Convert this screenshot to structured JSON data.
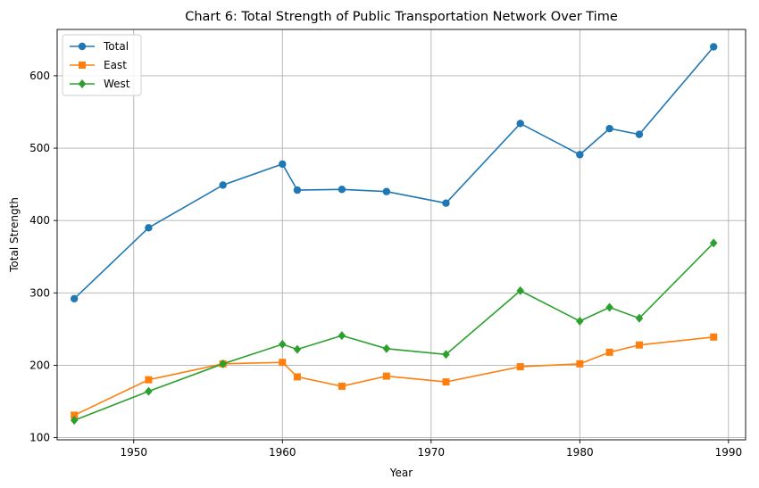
{
  "chart_data": {
    "type": "line",
    "title": "Chart 6: Total Strength of Public Transportation Network Over Time",
    "xlabel": "Year",
    "ylabel": "Total Strength",
    "xlim": [
      1944.85,
      1991.15
    ],
    "ylim": [
      97,
      664
    ],
    "xticks": [
      1950,
      1960,
      1970,
      1980,
      1990
    ],
    "yticks": [
      100,
      200,
      300,
      400,
      500,
      600
    ],
    "grid": true,
    "legend_position": "top-left",
    "x": [
      1946,
      1951,
      1956,
      1960,
      1961,
      1964,
      1967,
      1971,
      1976,
      1980,
      1982,
      1984,
      1989
    ],
    "series": [
      {
        "name": "Total",
        "color": "#1f77b4",
        "marker": "circle",
        "values": [
          292,
          390,
          449,
          478,
          442,
          443,
          440,
          424,
          534,
          491,
          527,
          519,
          640
        ]
      },
      {
        "name": "East",
        "color": "#ff7f0e",
        "marker": "square",
        "values": [
          131,
          180,
          202,
          204,
          184,
          171,
          185,
          177,
          198,
          202,
          218,
          228,
          239
        ]
      },
      {
        "name": "West",
        "color": "#2ca02c",
        "marker": "diamond",
        "values": [
          124,
          164,
          202,
          229,
          222,
          241,
          223,
          215,
          303,
          261,
          280,
          265,
          369
        ]
      }
    ]
  }
}
